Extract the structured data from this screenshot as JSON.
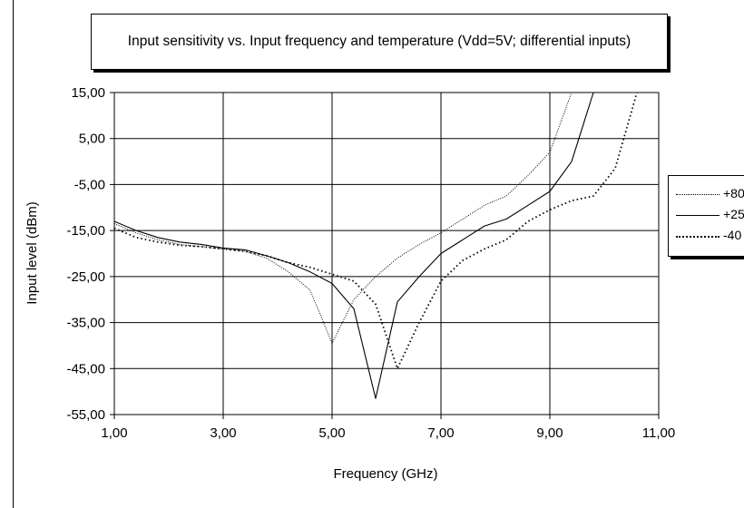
{
  "chart_data": {
    "type": "line",
    "title": "Input sensitivity vs. Input frequency and temperature (Vdd=5V; differential inputs)",
    "xlabel": "Frequency (GHz)",
    "ylabel": "Input level (dBm)",
    "xlim": [
      1,
      11
    ],
    "ylim": [
      -55,
      15
    ],
    "xticks": [
      1,
      3,
      5,
      7,
      9,
      11
    ],
    "yticks": [
      15,
      5,
      -5,
      -15,
      -25,
      -35,
      -45,
      -55
    ],
    "xtick_labels": [
      "1,00",
      "3,00",
      "5,00",
      "7,00",
      "9,00",
      "11,00"
    ],
    "ytick_labels": [
      "15,00",
      "5,00",
      "-5,00",
      "-15,00",
      "-25,00",
      "-35,00",
      "-45,00",
      "-55,00"
    ],
    "grid": true,
    "legend_position": "right",
    "series": [
      {
        "name": "+80",
        "style": "dotted-fine",
        "x": [
          1.0,
          1.4,
          1.8,
          2.2,
          2.6,
          3.0,
          3.4,
          3.8,
          4.2,
          4.6,
          5.0,
          5.4,
          5.8,
          6.2,
          6.6,
          7.0,
          7.4,
          7.8,
          8.2,
          8.6,
          9.0,
          9.4,
          10.6
        ],
        "y": [
          -13.5,
          -15.5,
          -17.0,
          -18.0,
          -18.5,
          -19.0,
          -19.5,
          -21.0,
          -24.0,
          -28.0,
          -39.5,
          -30.0,
          -25.0,
          -21.0,
          -18.0,
          -15.5,
          -12.5,
          -9.5,
          -7.5,
          -3.0,
          2.0,
          15.0,
          15.0
        ]
      },
      {
        "name": "+25",
        "style": "solid",
        "x": [
          1.0,
          1.4,
          1.8,
          2.2,
          2.6,
          3.0,
          3.4,
          3.8,
          4.2,
          4.6,
          5.0,
          5.4,
          5.8,
          6.2,
          6.6,
          7.0,
          7.4,
          7.8,
          8.2,
          8.6,
          9.0,
          9.4,
          9.8,
          10.6
        ],
        "y": [
          -13.0,
          -15.0,
          -16.5,
          -17.5,
          -18.0,
          -18.8,
          -19.2,
          -20.5,
          -22.0,
          -24.0,
          -26.5,
          -32.0,
          -51.5,
          -30.5,
          -25.0,
          -20.0,
          -17.0,
          -14.0,
          -12.5,
          -9.5,
          -6.5,
          0.0,
          15.0,
          15.0
        ]
      },
      {
        "name": "-40",
        "style": "dotted",
        "x": [
          1.0,
          1.4,
          1.8,
          2.2,
          2.6,
          3.0,
          3.4,
          3.8,
          4.2,
          4.6,
          5.0,
          5.4,
          5.8,
          6.2,
          6.6,
          7.0,
          7.4,
          7.8,
          8.2,
          8.6,
          9.0,
          9.4,
          9.8,
          10.2,
          10.6
        ],
        "y": [
          -14.5,
          -16.5,
          -17.5,
          -18.2,
          -18.5,
          -19.0,
          -19.5,
          -20.5,
          -22.0,
          -23.0,
          -24.5,
          -26.0,
          -31.0,
          -45.0,
          -35.0,
          -26.0,
          -21.5,
          -19.0,
          -17.0,
          -13.0,
          -10.5,
          -8.5,
          -7.5,
          -1.5,
          15.0
        ]
      }
    ]
  }
}
